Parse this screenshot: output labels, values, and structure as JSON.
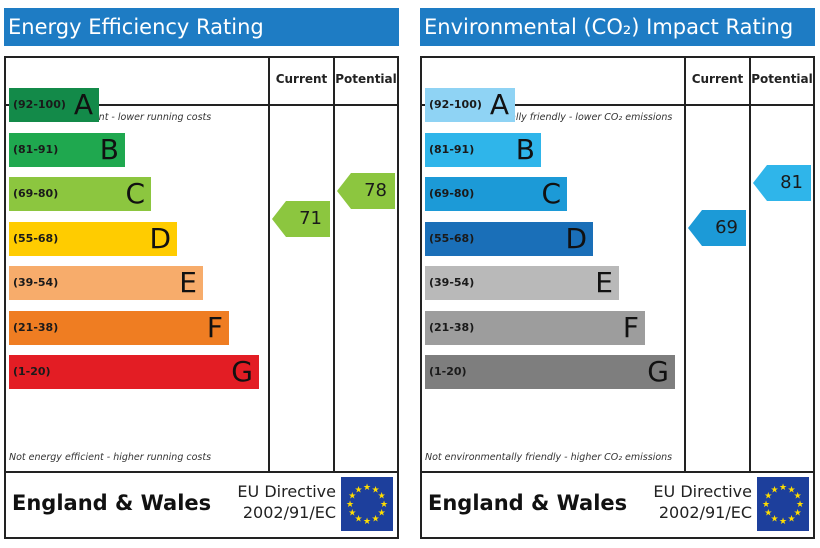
{
  "chart_data": [
    {
      "type": "bar",
      "title": "Energy Efficiency Rating",
      "columns": [
        "Current",
        "Potential"
      ],
      "top_note": "Very energy efficient - lower running costs",
      "bottom_note": "Not energy efficient - higher running costs",
      "bands": [
        {
          "range": "(92-100)",
          "letter": "A",
          "color": "#138a49"
        },
        {
          "range": "(81-91)",
          "letter": "B",
          "color": "#1fa84f"
        },
        {
          "range": "(69-80)",
          "letter": "C",
          "color": "#8cc63f"
        },
        {
          "range": "(55-68)",
          "letter": "D",
          "color": "#ffcc00"
        },
        {
          "range": "(39-54)",
          "letter": "E",
          "color": "#f7ac6b"
        },
        {
          "range": "(21-38)",
          "letter": "F",
          "color": "#ef7d22"
        },
        {
          "range": "(1-20)",
          "letter": "G",
          "color": "#e31d24"
        }
      ],
      "current": {
        "value": "71",
        "color": "#8cc63f"
      },
      "potential": {
        "value": "78",
        "color": "#8cc63f"
      },
      "footer": {
        "region": "England & Wales",
        "directive_line1": "EU Directive",
        "directive_line2": "2002/91/EC"
      }
    },
    {
      "type": "bar",
      "title": "Environmental (CO₂) Impact Rating",
      "columns": [
        "Current",
        "Potential"
      ],
      "top_note": "Very environmentally friendly - lower CO₂ emissions",
      "bottom_note": "Not environmentally friendly - higher CO₂ emissions",
      "bands": [
        {
          "range": "(92-100)",
          "letter": "A",
          "color": "#8fd3f4"
        },
        {
          "range": "(81-91)",
          "letter": "B",
          "color": "#2fb5ea"
        },
        {
          "range": "(69-80)",
          "letter": "C",
          "color": "#1c9ad7"
        },
        {
          "range": "(55-68)",
          "letter": "D",
          "color": "#1a6fb8"
        },
        {
          "range": "(39-54)",
          "letter": "E",
          "color": "#b9b9b9"
        },
        {
          "range": "(21-38)",
          "letter": "F",
          "color": "#9d9d9d"
        },
        {
          "range": "(1-20)",
          "letter": "G",
          "color": "#7e7e7e"
        }
      ],
      "current": {
        "value": "69",
        "color": "#1c9ad7"
      },
      "potential": {
        "value": "81",
        "color": "#2fb5ea"
      },
      "footer": {
        "region": "England & Wales",
        "directive_line1": "EU Directive",
        "directive_line2": "2002/91/EC"
      }
    }
  ]
}
